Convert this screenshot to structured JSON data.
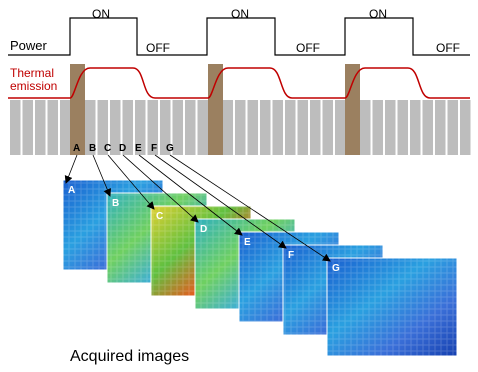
{
  "power": {
    "label": "Power",
    "on_labels": [
      "ON",
      "ON",
      "ON"
    ],
    "off_labels": [
      "OFF",
      "OFF",
      "OFF"
    ]
  },
  "thermal": {
    "lines": [
      "Thermal",
      "emission"
    ]
  },
  "frames": {
    "labels": [
      "A",
      "B",
      "C",
      "D",
      "E",
      "F",
      "G"
    ]
  },
  "images": {
    "labels": [
      "A",
      "B",
      "C",
      "D",
      "E",
      "F",
      "G"
    ],
    "caption": "Acquired images"
  }
}
